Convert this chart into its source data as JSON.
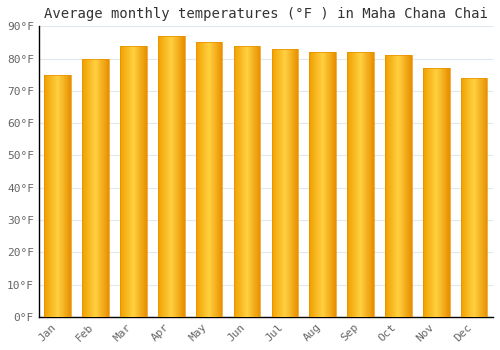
{
  "title": "Average monthly temperatures (°F ) in Maha Chana Chai",
  "months": [
    "Jan",
    "Feb",
    "Mar",
    "Apr",
    "May",
    "Jun",
    "Jul",
    "Aug",
    "Sep",
    "Oct",
    "Nov",
    "Dec"
  ],
  "values": [
    75,
    80,
    84,
    87,
    85,
    84,
    83,
    82,
    82,
    81,
    77,
    74
  ],
  "bar_color_left": "#F0A000",
  "bar_color_center": "#FFD040",
  "bar_color_right": "#E89000",
  "background_color": "#FFFFFF",
  "grid_color": "#E0E8F0",
  "axis_color": "#000000",
  "tick_color": "#666666",
  "ylim": [
    0,
    90
  ],
  "ytick_step": 10,
  "title_fontsize": 10,
  "tick_fontsize": 8,
  "bar_width": 0.7
}
